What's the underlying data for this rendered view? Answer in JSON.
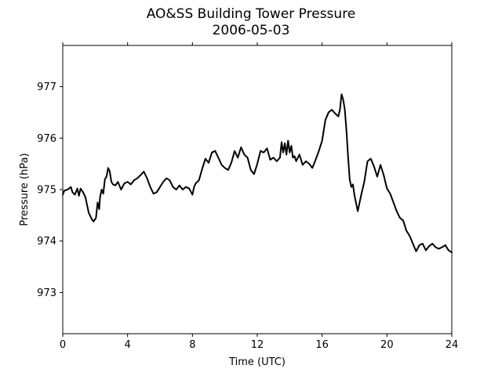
{
  "chart_data": {
    "type": "line",
    "title": "AO&SS Building Tower Pressure",
    "subtitle": "2006-05-03",
    "xlabel": "Time (UTC)",
    "ylabel": "Pressure (hPa)",
    "xlim": [
      0,
      24
    ],
    "ylim": [
      972.2,
      977.8
    ],
    "xticks": [
      0,
      4,
      8,
      12,
      16,
      20,
      24
    ],
    "yticks": [
      973,
      974,
      975,
      976,
      977
    ],
    "grid": false,
    "line_color": "#000000",
    "series": [
      {
        "x": [
          0.0,
          0.1,
          0.3,
          0.5,
          0.6,
          0.75,
          0.9,
          1.0,
          1.1,
          1.25,
          1.4,
          1.6,
          1.8,
          1.9,
          2.05,
          2.15,
          2.25,
          2.3,
          2.4,
          2.5,
          2.6,
          2.7,
          2.8,
          2.9,
          3.0,
          3.1,
          3.25,
          3.4,
          3.6,
          3.8,
          4.0,
          4.2,
          4.4,
          4.6,
          4.8,
          5.0,
          5.2,
          5.4,
          5.6,
          5.8,
          6.0,
          6.2,
          6.4,
          6.6,
          6.8,
          7.0,
          7.2,
          7.4,
          7.6,
          7.8,
          8.0,
          8.1,
          8.2,
          8.4,
          8.6,
          8.8,
          9.0,
          9.2,
          9.4,
          9.6,
          9.8,
          10.0,
          10.2,
          10.4,
          10.6,
          10.8,
          11.0,
          11.2,
          11.4,
          11.6,
          11.8,
          12.0,
          12.2,
          12.4,
          12.6,
          12.8,
          13.0,
          13.2,
          13.4,
          13.5,
          13.6,
          13.7,
          13.8,
          13.9,
          14.0,
          14.1,
          14.2,
          14.3,
          14.4,
          14.6,
          14.8,
          15.0,
          15.2,
          15.4,
          15.6,
          15.8,
          16.0,
          16.2,
          16.4,
          16.6,
          16.8,
          17.0,
          17.1,
          17.2,
          17.3,
          17.4,
          17.5,
          17.6,
          17.7,
          17.8,
          17.9,
          18.0,
          18.2,
          18.4,
          18.6,
          18.8,
          19.0,
          19.2,
          19.4,
          19.6,
          19.8,
          20.0,
          20.2,
          20.4,
          20.6,
          20.8,
          21.0,
          21.2,
          21.4,
          21.6,
          21.8,
          22.0,
          22.2,
          22.4,
          22.6,
          22.8,
          23.0,
          23.2,
          23.4,
          23.6,
          23.8,
          24.0
        ],
        "values": [
          974.9,
          974.98,
          975.0,
          975.05,
          974.95,
          974.9,
          975.02,
          974.88,
          975.02,
          974.95,
          974.85,
          974.55,
          974.42,
          974.38,
          974.45,
          974.75,
          974.62,
          974.85,
          975.0,
          974.92,
          975.2,
          975.25,
          975.42,
          975.35,
          975.15,
          975.1,
          975.08,
          975.15,
          975.0,
          975.12,
          975.15,
          975.1,
          975.18,
          975.22,
          975.28,
          975.35,
          975.22,
          975.05,
          974.92,
          974.95,
          975.05,
          975.15,
          975.22,
          975.18,
          975.05,
          975.0,
          975.08,
          975.0,
          975.05,
          975.02,
          974.9,
          975.05,
          975.12,
          975.18,
          975.4,
          975.6,
          975.52,
          975.72,
          975.75,
          975.62,
          975.48,
          975.42,
          975.38,
          975.52,
          975.75,
          975.62,
          975.82,
          975.68,
          975.62,
          975.38,
          975.3,
          975.5,
          975.75,
          975.72,
          975.8,
          975.58,
          975.62,
          975.55,
          975.62,
          975.92,
          975.72,
          975.9,
          975.68,
          975.95,
          975.72,
          975.85,
          975.62,
          975.65,
          975.55,
          975.68,
          975.48,
          975.55,
          975.5,
          975.42,
          975.58,
          975.75,
          975.95,
          976.35,
          976.5,
          976.55,
          976.48,
          976.42,
          976.55,
          976.85,
          976.75,
          976.55,
          976.15,
          975.65,
          975.2,
          975.05,
          975.1,
          974.88,
          974.58,
          974.88,
          975.15,
          975.55,
          975.6,
          975.45,
          975.25,
          975.48,
          975.28,
          975.02,
          974.92,
          974.75,
          974.58,
          974.45,
          974.4,
          974.2,
          974.1,
          973.95,
          973.8,
          973.92,
          973.95,
          973.82,
          973.9,
          973.95,
          973.88,
          973.85,
          973.88,
          973.92,
          973.82,
          973.78
        ]
      }
    ]
  }
}
